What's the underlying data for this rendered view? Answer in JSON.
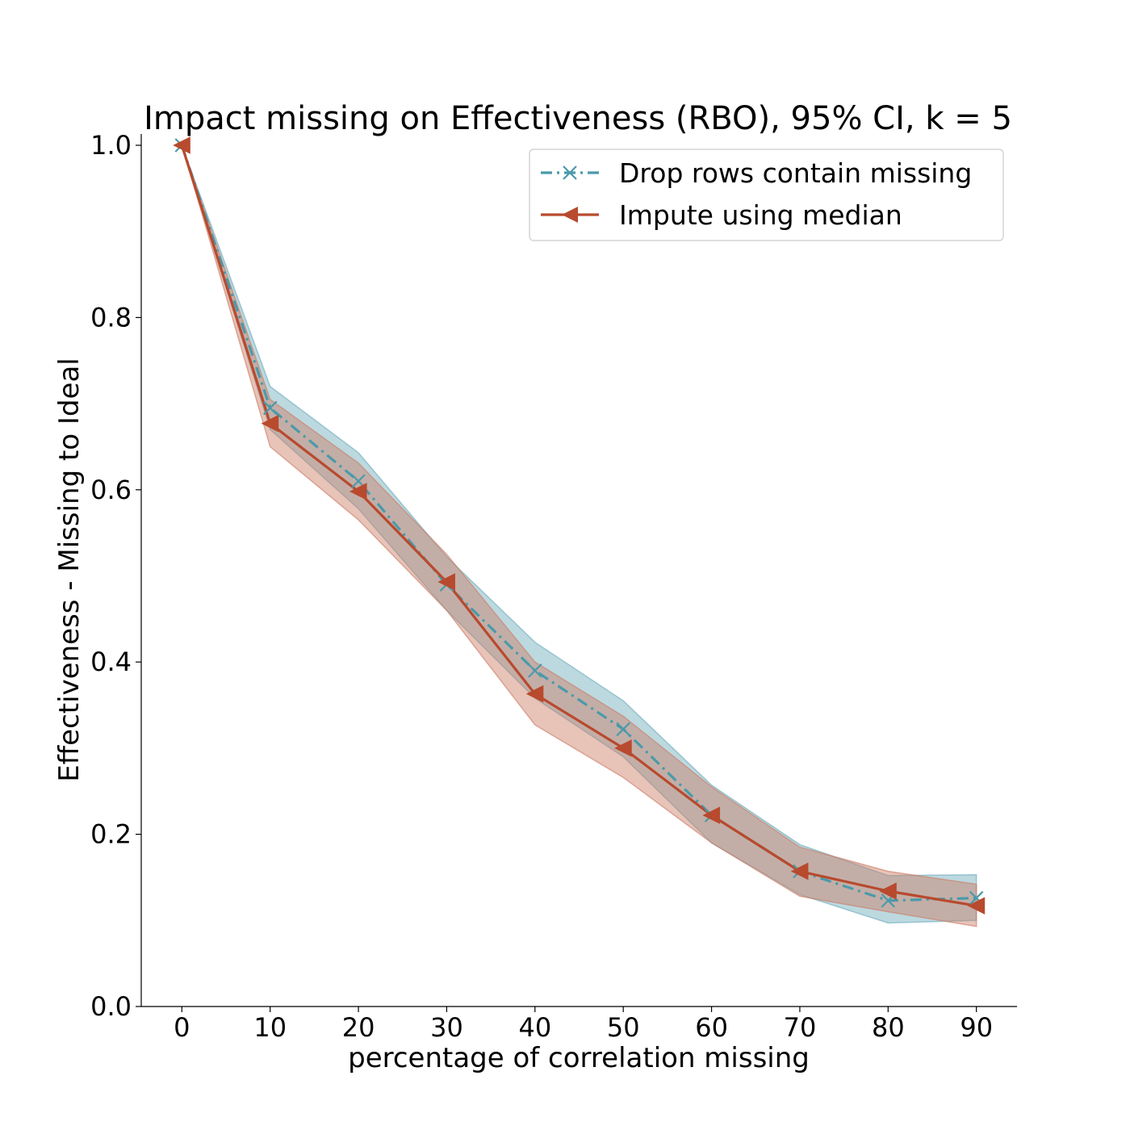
{
  "chart_data": {
    "type": "line",
    "title": "Impact missing on Effectiveness (RBO), 95% CI, k = 5",
    "xlabel": "percentage of correlation missing",
    "ylabel": "Effectiveness - Missing to Ideal",
    "x": [
      0,
      10,
      20,
      30,
      40,
      50,
      60,
      70,
      80,
      90
    ],
    "xticks": [
      "0",
      "10",
      "20",
      "30",
      "40",
      "50",
      "60",
      "70",
      "80",
      "90"
    ],
    "yticks": [
      "0.0",
      "0.2",
      "0.4",
      "0.6",
      "0.8",
      "1.0"
    ],
    "xlim": [
      -4.6,
      94.6
    ],
    "ylim": [
      0.0,
      1.0
    ],
    "grid": false,
    "legend_position": "top-right",
    "series": [
      {
        "name": "Drop rows contain missing",
        "color": "#4a9aaa",
        "band_color": "#6aaabb",
        "line_style": "dash-dot",
        "marker": "x",
        "values": [
          1.0,
          0.695,
          0.61,
          0.49,
          0.39,
          0.322,
          0.222,
          0.157,
          0.123,
          0.126
        ],
        "ci_low": [
          1.0,
          0.67,
          0.578,
          0.46,
          0.358,
          0.29,
          0.19,
          0.13,
          0.097,
          0.1
        ],
        "ci_high": [
          1.0,
          0.72,
          0.643,
          0.522,
          0.423,
          0.355,
          0.257,
          0.188,
          0.152,
          0.153
        ]
      },
      {
        "name": "Impute using median",
        "color": "#b84a2e",
        "band_color": "#cc7a62",
        "line_style": "solid",
        "marker": "triangle-left",
        "values": [
          1.0,
          0.677,
          0.598,
          0.493,
          0.363,
          0.3,
          0.222,
          0.157,
          0.134,
          0.117
        ],
        "ci_low": [
          1.0,
          0.65,
          0.565,
          0.46,
          0.327,
          0.266,
          0.19,
          0.128,
          0.11,
          0.093
        ],
        "ci_high": [
          1.0,
          0.705,
          0.631,
          0.525,
          0.4,
          0.337,
          0.255,
          0.185,
          0.157,
          0.142
        ]
      }
    ]
  }
}
